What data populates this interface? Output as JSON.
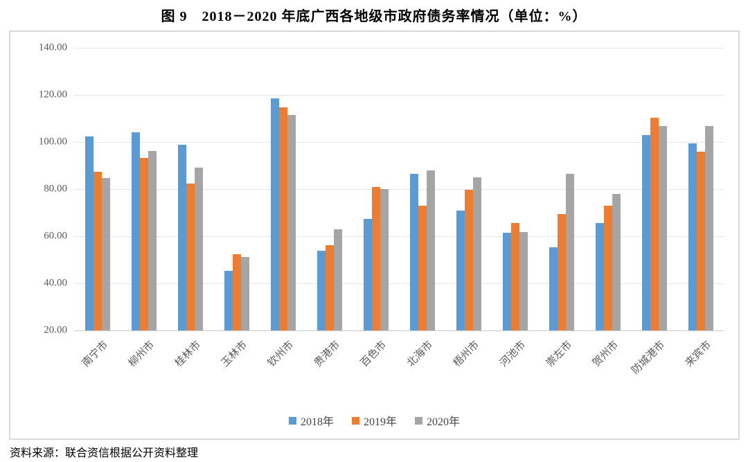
{
  "title": "图 9　2018－2020 年底广西各地级市政府债务率情况（单位：%）",
  "source": "资料来源：联合资信根据公开资料整理",
  "colors": {
    "blue": "#5B9BD5",
    "orange": "#ED7D31",
    "gray": "#A5A5A5",
    "grid": "#e5e5e5",
    "axis": "#c9c9c9",
    "border": "#d9d9d9"
  },
  "chart_data": {
    "type": "bar",
    "title": "图 9　2018－2020 年底广西各地级市政府债务率情况（单位：%）",
    "xlabel": "",
    "ylabel": "",
    "unit": "%",
    "categories": [
      "南宁市",
      "柳州市",
      "桂林市",
      "玉林市",
      "钦州市",
      "贵港市",
      "百色市",
      "北海市",
      "梧州市",
      "河池市",
      "崇左市",
      "贺州市",
      "防城港市",
      "来宾市"
    ],
    "series": [
      {
        "name": "2018年",
        "color": "#5B9BD5",
        "values": [
          102.4,
          104.1,
          98.7,
          45.2,
          118.4,
          53.7,
          67.5,
          86.5,
          71.0,
          61.4,
          55.4,
          65.7,
          103.0,
          99.4
        ]
      },
      {
        "name": "2019年",
        "color": "#ED7D31",
        "values": [
          87.5,
          93.2,
          82.3,
          52.3,
          114.6,
          56.1,
          81.0,
          72.8,
          79.8,
          65.6,
          69.5,
          72.9,
          110.2,
          95.8
        ]
      },
      {
        "name": "2020年",
        "color": "#A5A5A5",
        "values": [
          84.8,
          96.1,
          89.2,
          51.1,
          111.4,
          63.0,
          80.0,
          87.9,
          84.9,
          61.8,
          86.5,
          77.8,
          106.7,
          106.9
        ]
      }
    ],
    "ylim": [
      20,
      140
    ],
    "yticks": [
      20,
      40,
      60,
      80,
      100,
      120,
      140
    ],
    "ytick_decimals": 2,
    "grid": true,
    "legend_position": "bottom"
  }
}
